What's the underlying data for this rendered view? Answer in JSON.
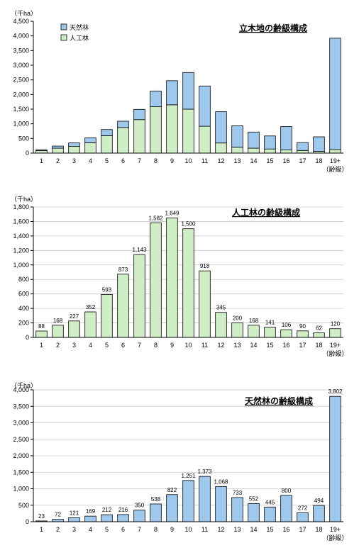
{
  "colors": {
    "planted": "#cfeec6",
    "natural": "#9ec8ec",
    "axis": "#000000",
    "grid": "#c8c8c8",
    "stroke": "#000000"
  },
  "chart_data": [
    {
      "type": "bar",
      "stacked": true,
      "title": "立木地の齢級構成",
      "unit_label": "（千ha）",
      "categories": [
        "1",
        "2",
        "3",
        "4",
        "5",
        "6",
        "7",
        "8",
        "9",
        "10",
        "11",
        "12",
        "13",
        "14",
        "15",
        "16",
        "17",
        "18",
        "19+"
      ],
      "category_note": "（齢級）",
      "ylim": [
        0,
        4500
      ],
      "yticks": [
        "0",
        "500",
        "1,000",
        "1,500",
        "2,000",
        "2,500",
        "3,000",
        "3,500",
        "4,000",
        "4,500"
      ],
      "grid": false,
      "legend_position": "top-left",
      "series": [
        {
          "name": "人工林",
          "color_key": "planted",
          "values": [
            88,
            168,
            227,
            352,
            593,
            873,
            1143,
            1582,
            1649,
            1500,
            918,
            345,
            200,
            168,
            141,
            106,
            90,
            62,
            120
          ]
        },
        {
          "name": "天然林",
          "color_key": "natural",
          "values": [
            23,
            72,
            121,
            169,
            212,
            216,
            350,
            538,
            822,
            1251,
            1373,
            1068,
            733,
            552,
            445,
            800,
            272,
            494,
            3802
          ]
        }
      ]
    },
    {
      "type": "bar",
      "title": "人工林の齢級構成",
      "unit_label": "（千ha）",
      "categories": [
        "1",
        "2",
        "3",
        "4",
        "5",
        "6",
        "7",
        "8",
        "9",
        "10",
        "11",
        "12",
        "13",
        "14",
        "15",
        "16",
        "17",
        "18",
        "19+"
      ],
      "category_note": "（齢級）",
      "ylim": [
        0,
        1800
      ],
      "yticks": [
        "0",
        "200",
        "400",
        "600",
        "800",
        "1,000",
        "1,200",
        "1,400",
        "1,600",
        "1,800"
      ],
      "grid": true,
      "color_key": "planted",
      "values": [
        88,
        168,
        227,
        352,
        593,
        873,
        1143,
        1582,
        1649,
        1500,
        918,
        345,
        200,
        168,
        141,
        106,
        90,
        62,
        120
      ],
      "labels": [
        "88",
        "168",
        "227",
        "352",
        "593",
        "873",
        "1,143",
        "1,582",
        "1,649",
        "1,500",
        "918",
        "345",
        "200",
        "168",
        "141",
        "106",
        "90",
        "62",
        "120"
      ]
    },
    {
      "type": "bar",
      "title": "天然林の齢級構成",
      "unit_label": "（千ha）",
      "categories": [
        "1",
        "2",
        "3",
        "4",
        "5",
        "6",
        "7",
        "8",
        "9",
        "10",
        "11",
        "12",
        "13",
        "14",
        "15",
        "16",
        "17",
        "18",
        "19+"
      ],
      "category_note": "（齢級）",
      "ylim": [
        0,
        4000
      ],
      "yticks": [
        "0",
        "500",
        "1,000",
        "1,500",
        "2,000",
        "2,500",
        "3,000",
        "3,500",
        "4,000"
      ],
      "grid": true,
      "color_key": "natural",
      "values": [
        23,
        72,
        121,
        169,
        212,
        216,
        350,
        538,
        822,
        1251,
        1373,
        1068,
        733,
        552,
        445,
        800,
        272,
        494,
        3802
      ],
      "labels": [
        "23",
        "72",
        "121",
        "169",
        "212",
        "216",
        "350",
        "538",
        "822",
        "1,251",
        "1,373",
        "1,068",
        "733",
        "552",
        "445",
        "800",
        "272",
        "494",
        "3,802"
      ]
    }
  ]
}
